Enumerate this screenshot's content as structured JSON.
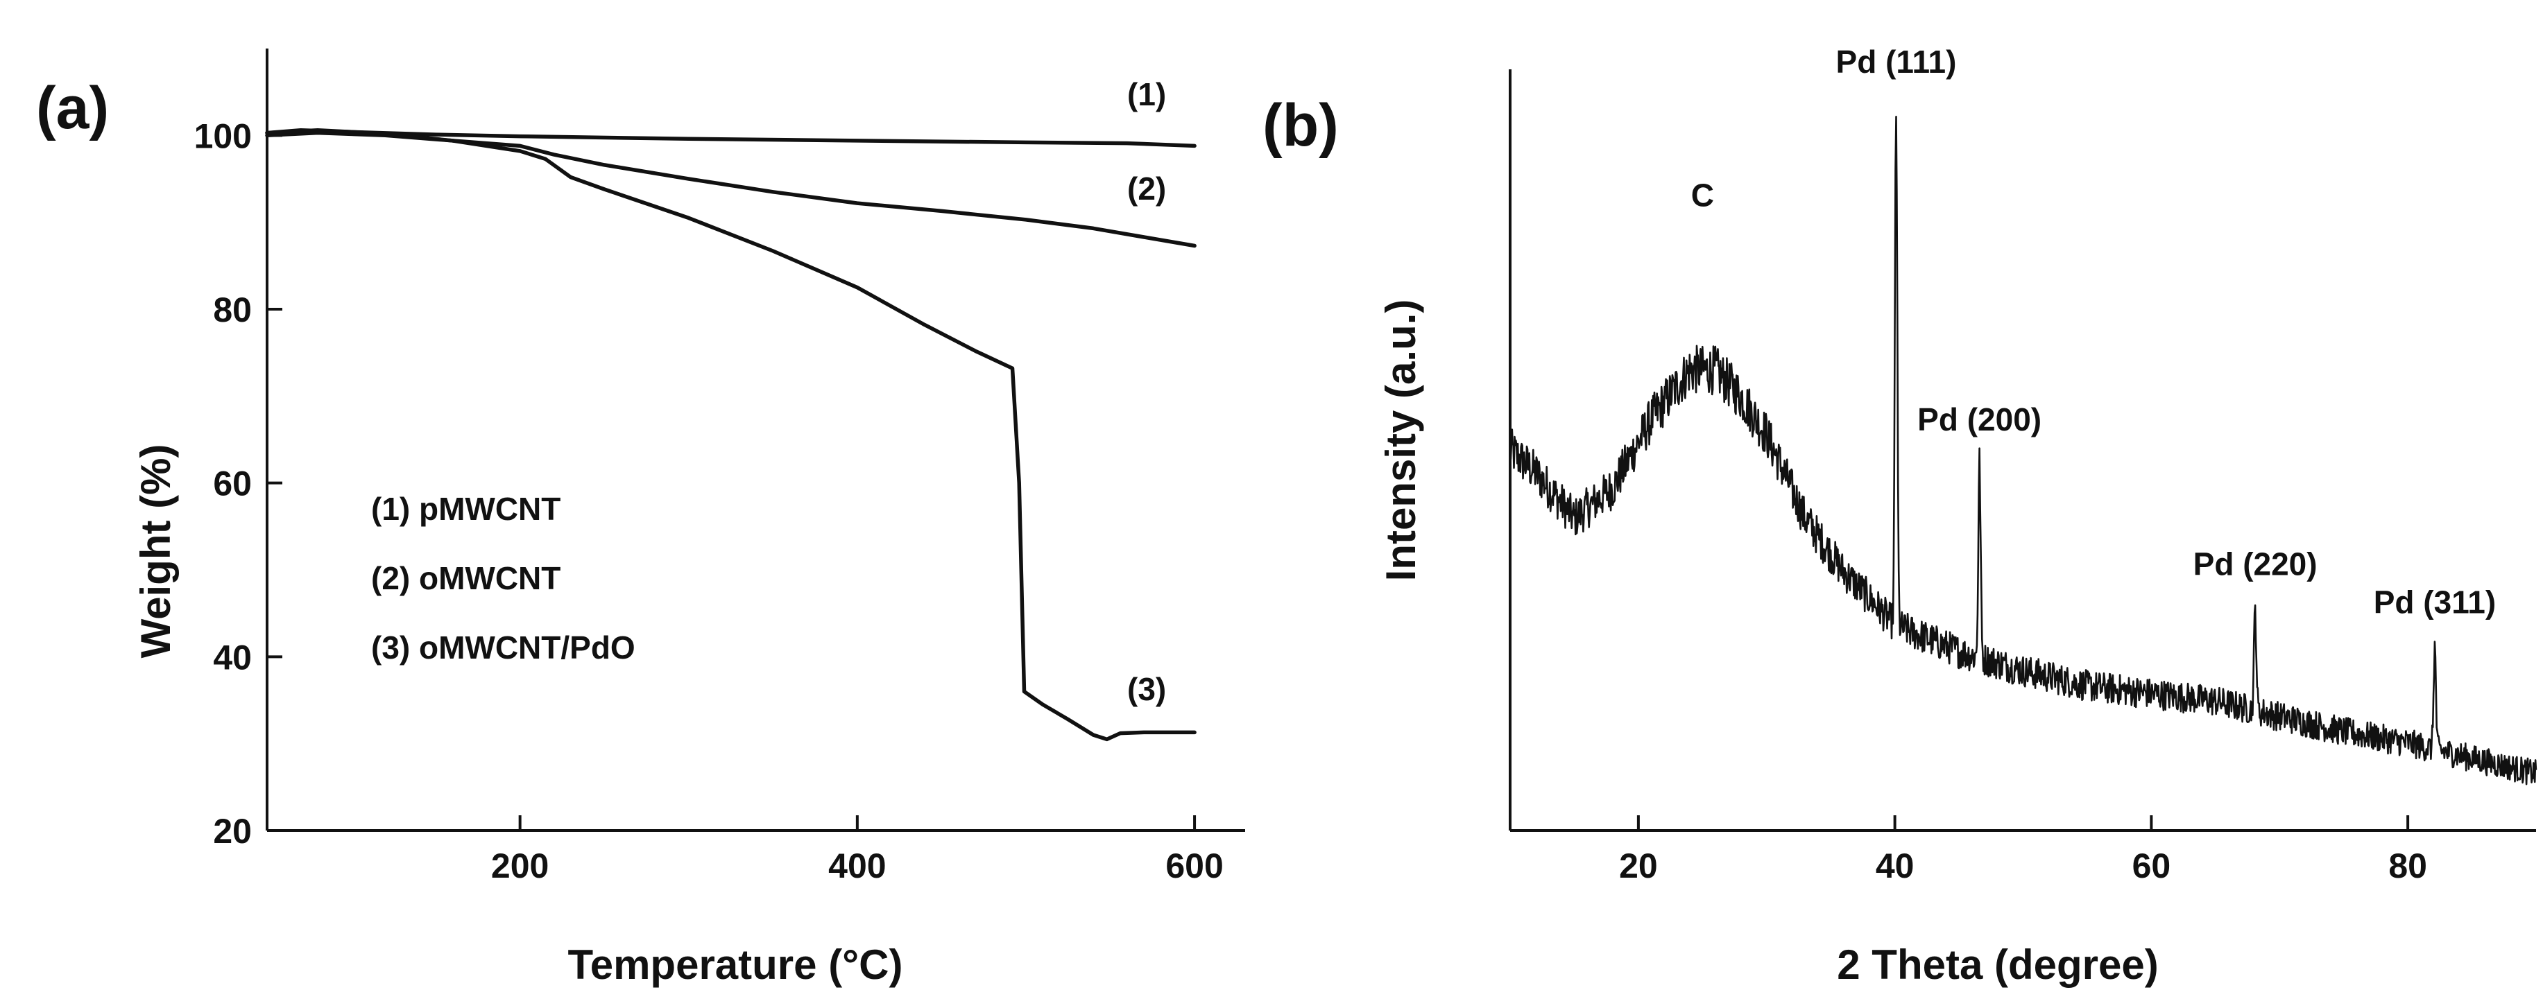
{
  "chart_data": [
    {
      "panel": "(a)",
      "type": "line",
      "title": "",
      "xlabel": "Temperature (°C)",
      "ylabel": "Weight (%)",
      "xlim": [
        50,
        630
      ],
      "ylim": [
        20,
        110
      ],
      "xticks": [
        200,
        400,
        600
      ],
      "yticks": [
        20,
        40,
        60,
        80,
        100
      ],
      "grid": false,
      "legend": {
        "placement": "center-left",
        "entries": [
          "(1) pMWCNT",
          "(2) oMWCNT",
          "(3) oMWCNT/PdO"
        ]
      },
      "series": [
        {
          "name": "(1) pMWCNT",
          "tag": "(1)",
          "points": [
            [
              50,
              100.3
            ],
            [
              70,
              100.6
            ],
            [
              100,
              100.4
            ],
            [
              150,
              100.1
            ],
            [
              200,
              99.9
            ],
            [
              300,
              99.6
            ],
            [
              400,
              99.4
            ],
            [
              500,
              99.2
            ],
            [
              560,
              99.1
            ],
            [
              600,
              98.8
            ]
          ]
        },
        {
          "name": "(2) oMWCNT",
          "tag": "(2)",
          "points": [
            [
              50,
              100.0
            ],
            [
              80,
              100.3
            ],
            [
              120,
              100.0
            ],
            [
              160,
              99.4
            ],
            [
              200,
              98.8
            ],
            [
              220,
              97.8
            ],
            [
              250,
              96.6
            ],
            [
              300,
              95.0
            ],
            [
              350,
              93.5
            ],
            [
              400,
              92.2
            ],
            [
              450,
              91.3
            ],
            [
              500,
              90.3
            ],
            [
              540,
              89.3
            ],
            [
              570,
              88.3
            ],
            [
              600,
              87.3
            ]
          ]
        },
        {
          "name": "(3) oMWCNT/PdO",
          "tag": "(3)",
          "points": [
            [
              50,
              100.3
            ],
            [
              80,
              100.6
            ],
            [
              120,
              100.2
            ],
            [
              160,
              99.4
            ],
            [
              200,
              98.2
            ],
            [
              215,
              97.3
            ],
            [
              230,
              95.2
            ],
            [
              250,
              93.8
            ],
            [
              300,
              90.5
            ],
            [
              350,
              86.7
            ],
            [
              400,
              82.5
            ],
            [
              440,
              78.2
            ],
            [
              470,
              75.2
            ],
            [
              492,
              73.2
            ],
            [
              496,
              60.0
            ],
            [
              499,
              36.0
            ],
            [
              510,
              34.5
            ],
            [
              525,
              32.8
            ],
            [
              540,
              31.0
            ],
            [
              548,
              30.5
            ],
            [
              556,
              31.2
            ],
            [
              570,
              31.3
            ],
            [
              600,
              31.3
            ]
          ]
        }
      ]
    },
    {
      "panel": "(b)",
      "type": "line",
      "title": "",
      "xlabel": "2 Theta (degree)",
      "ylabel": "Intensity (a.u.)",
      "xlim": [
        10,
        90
      ],
      "ylim": [
        0,
        1
      ],
      "xticks": [
        20,
        40,
        60,
        80
      ],
      "yticks": [],
      "grid": false,
      "baseline": [
        [
          10,
          0.5
        ],
        [
          12,
          0.47
        ],
        [
          15,
          0.41
        ],
        [
          18,
          0.45
        ],
        [
          21,
          0.54
        ],
        [
          24,
          0.605
        ],
        [
          26,
          0.605
        ],
        [
          28,
          0.57
        ],
        [
          30,
          0.52
        ],
        [
          33,
          0.41
        ],
        [
          36,
          0.34
        ],
        [
          40,
          0.27
        ],
        [
          45,
          0.235
        ],
        [
          50,
          0.21
        ],
        [
          55,
          0.19
        ],
        [
          60,
          0.18
        ],
        [
          65,
          0.17
        ],
        [
          70,
          0.15
        ],
        [
          75,
          0.13
        ],
        [
          80,
          0.115
        ],
        [
          85,
          0.095
        ],
        [
          90,
          0.075
        ]
      ],
      "peaks": [
        {
          "label": "Pd (111)",
          "x": 40.1,
          "height": 0.95
        },
        {
          "label": "Pd (200)",
          "x": 46.6,
          "height": 0.48
        },
        {
          "label": "Pd (220)",
          "x": 68.1,
          "height": 0.29
        },
        {
          "label": "Pd (311)",
          "x": 82.1,
          "height": 0.24
        }
      ],
      "annotations": [
        {
          "text": "C",
          "x": 25,
          "y": 0.82
        }
      ]
    }
  ]
}
